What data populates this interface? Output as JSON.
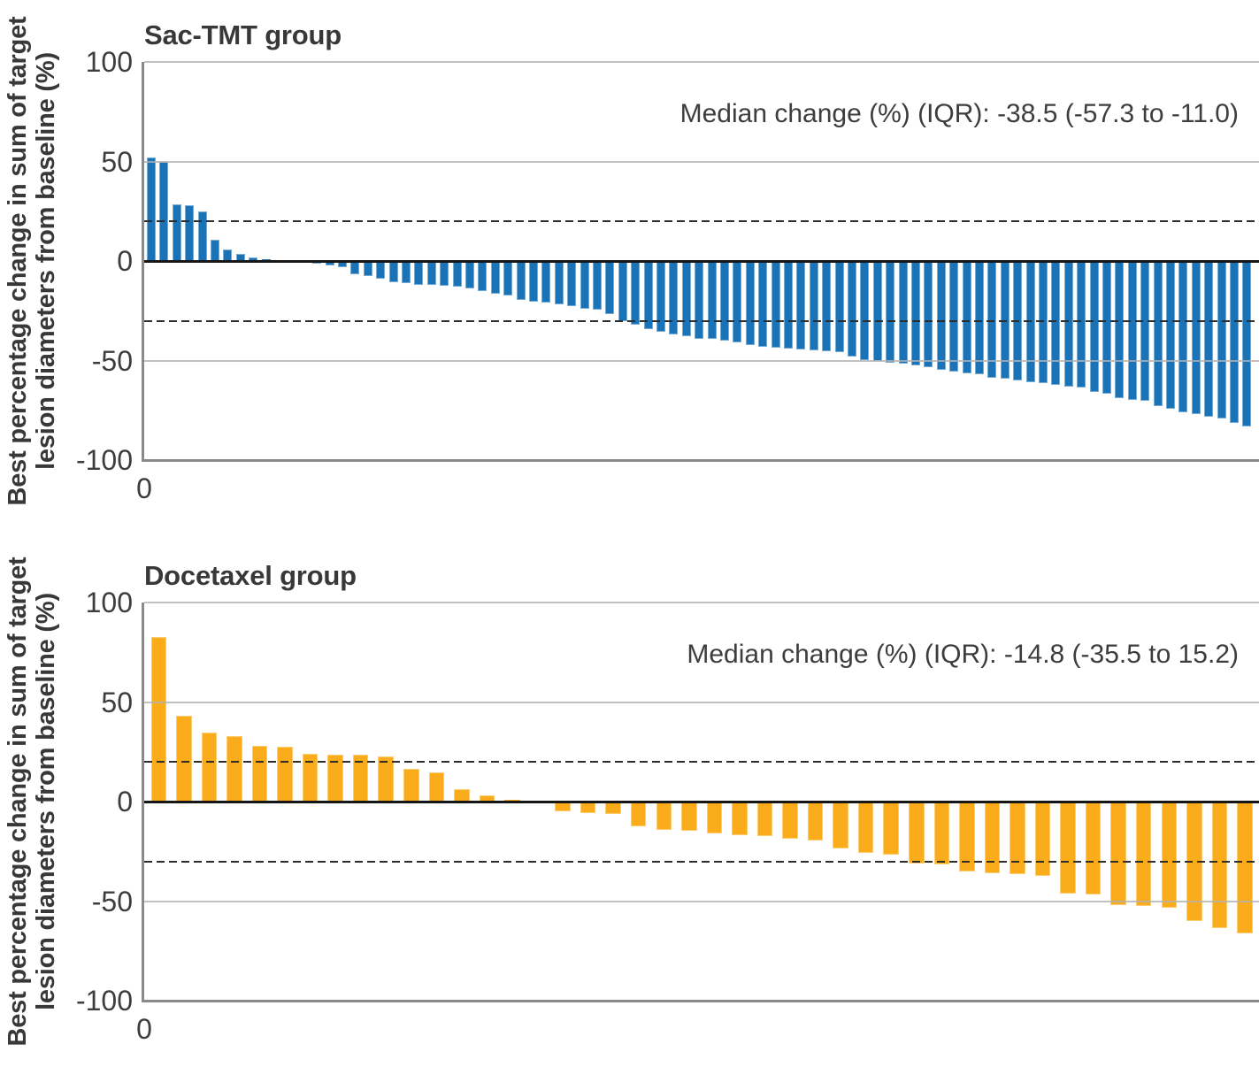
{
  "chart_data": [
    {
      "type": "bar",
      "title": "Sac-TMT group",
      "annotation": "Median change (%) (IQR): -38.5 (-57.3 to -11.0)",
      "median_change_pct": -38.5,
      "iqr": [
        -57.3,
        -11.0
      ],
      "ylabel_line1": "Best percentage change in sum of target",
      "ylabel_line2": "lesion diameters from baseline (%)",
      "x_first_tick_label": "0",
      "ylim": [
        -100,
        100
      ],
      "yticks": [
        {
          "label": "100",
          "value": 100
        },
        {
          "label": "50",
          "value": 50
        },
        {
          "label": "0",
          "value": 0
        },
        {
          "label": "-50",
          "value": -50
        },
        {
          "label": "-100",
          "value": -100
        }
      ],
      "reference_lines": [
        20,
        -30
      ],
      "bar_color": "#1b73b7",
      "n_patients": 87,
      "values": [
        52,
        50,
        28.5,
        28,
        25,
        10.5,
        6,
        3.5,
        2,
        1,
        0.4,
        -0.3,
        -0.8,
        -1.5,
        -2.3,
        -3,
        -6.8,
        -7.5,
        -9,
        -10.5,
        -11.3,
        -11.9,
        -12.2,
        -12.6,
        -13,
        -13.6,
        -15,
        -16.5,
        -17.5,
        -19.5,
        -20.5,
        -21,
        -21.6,
        -22.8,
        -23.8,
        -24.6,
        -26.6,
        -30.3,
        -31.8,
        -34,
        -35.5,
        -37,
        -37.7,
        -38.9,
        -39.2,
        -40,
        -41,
        -42.2,
        -42.9,
        -43.7,
        -44,
        -44.4,
        -44.9,
        -45.2,
        -45.9,
        -48,
        -49.6,
        -50.4,
        -51,
        -51.5,
        -52.6,
        -53.3,
        -54.8,
        -55.6,
        -56.3,
        -57.1,
        -58.6,
        -59.3,
        -60,
        -60.7,
        -61.5,
        -62.3,
        -62.9,
        -63.6,
        -65.8,
        -66.7,
        -68.9,
        -69.6,
        -70.2,
        -72.9,
        -74,
        -76.2,
        -76.9,
        -78.4,
        -79.1,
        -81.3,
        -83
      ]
    },
    {
      "type": "bar",
      "title": "Docetaxel group",
      "annotation": "Median change (%) (IQR): -14.8 (-35.5 to 15.2)",
      "median_change_pct": -14.8,
      "iqr": [
        -35.5,
        15.2
      ],
      "ylabel_line1": "Best percentage change in sum of target",
      "ylabel_line2": "lesion diameters from baseline (%)",
      "x_first_tick_label": "0",
      "ylim": [
        -100,
        100
      ],
      "yticks": [
        {
          "label": "100",
          "value": 100
        },
        {
          "label": "50",
          "value": 50
        },
        {
          "label": "0",
          "value": 0
        },
        {
          "label": "-50",
          "value": -50
        },
        {
          "label": "-100",
          "value": -100
        }
      ],
      "reference_lines": [
        20,
        -30
      ],
      "bar_color": "#fbac1a",
      "n_patients": 44,
      "values": [
        82.5,
        43,
        34.5,
        33,
        28,
        27.5,
        24,
        23.7,
        23.6,
        22.7,
        16.4,
        14.5,
        6.4,
        3,
        0.8,
        -0.9,
        -4.7,
        -5.8,
        -6.2,
        -12.5,
        -14.2,
        -14.7,
        -16,
        -17,
        -17.3,
        -18.7,
        -19.6,
        -23.6,
        -25.8,
        -26.7,
        -31.1,
        -31.4,
        -35.1,
        -35.8,
        -36.6,
        -37.3,
        -46.2,
        -46.5,
        -51.8,
        -52.4,
        -53.2,
        -60,
        -63.6,
        -66.2
      ]
    }
  ]
}
